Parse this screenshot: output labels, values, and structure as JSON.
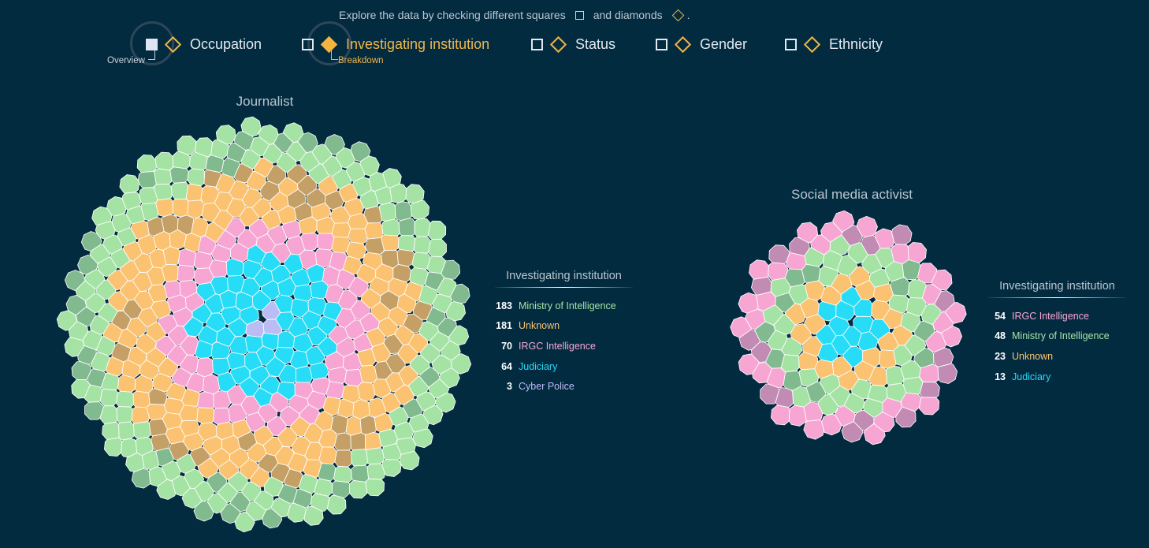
{
  "intro": {
    "text_before": "Explore the data by checking different squares",
    "text_middle": "and diamonds",
    "text_after": "."
  },
  "dimensions": [
    {
      "label": "Occupation",
      "square_checked": true,
      "diamond_checked": false,
      "active": false
    },
    {
      "label": "Investigating institution",
      "square_checked": false,
      "diamond_checked": true,
      "active": true
    },
    {
      "label": "Status",
      "square_checked": false,
      "diamond_checked": false,
      "active": false
    },
    {
      "label": "Gender",
      "square_checked": false,
      "diamond_checked": false,
      "active": false
    },
    {
      "label": "Ethnicity",
      "square_checked": false,
      "diamond_checked": false,
      "active": false
    }
  ],
  "hints": {
    "overview": "Overview",
    "breakdown": "Breakdown"
  },
  "colors": {
    "Ministry of Intelligence": "#a5e3a5",
    "Unknown": "#fbc271",
    "IRGC Intelligence": "#f7a6d3",
    "Judiciary": "#26dcf7",
    "Cyber Police": "#bbbcf4",
    "background": "#032b40",
    "accent": "#f0b54a"
  },
  "chart_data": [
    {
      "type": "voronoi-circle",
      "title": "Journalist",
      "legend_title": "Investigating institution",
      "categories": [
        "Ministry of Intelligence",
        "Unknown",
        "IRGC Intelligence",
        "Judiciary",
        "Cyber Police"
      ],
      "values": [
        183,
        181,
        70,
        64,
        3
      ],
      "legend": [
        {
          "count": "183",
          "label": "Ministry of Intelligence"
        },
        {
          "count": "181",
          "label": "Unknown"
        },
        {
          "count": "70",
          "label": "IRGC Intelligence"
        },
        {
          "count": "64",
          "label": "Judiciary"
        },
        {
          "count": "3",
          "label": "Cyber Police"
        }
      ],
      "center_order": [
        "Cyber Police",
        "Judiciary",
        "IRGC Intelligence",
        "Unknown",
        "Ministry of Intelligence"
      ]
    },
    {
      "type": "voronoi-circle",
      "title": "Social media activist",
      "legend_title": "Investigating institution",
      "categories": [
        "IRGC Intelligence",
        "Ministry of Intelligence",
        "Unknown",
        "Judiciary"
      ],
      "values": [
        54,
        48,
        23,
        13
      ],
      "legend": [
        {
          "count": "54",
          "label": "IRGC Intelligence"
        },
        {
          "count": "48",
          "label": "Ministry of Intelligence"
        },
        {
          "count": "23",
          "label": "Unknown"
        },
        {
          "count": "13",
          "label": "Judiciary"
        }
      ],
      "center_order": [
        "Judiciary",
        "Unknown",
        "Ministry of Intelligence",
        "IRGC Intelligence"
      ]
    }
  ]
}
